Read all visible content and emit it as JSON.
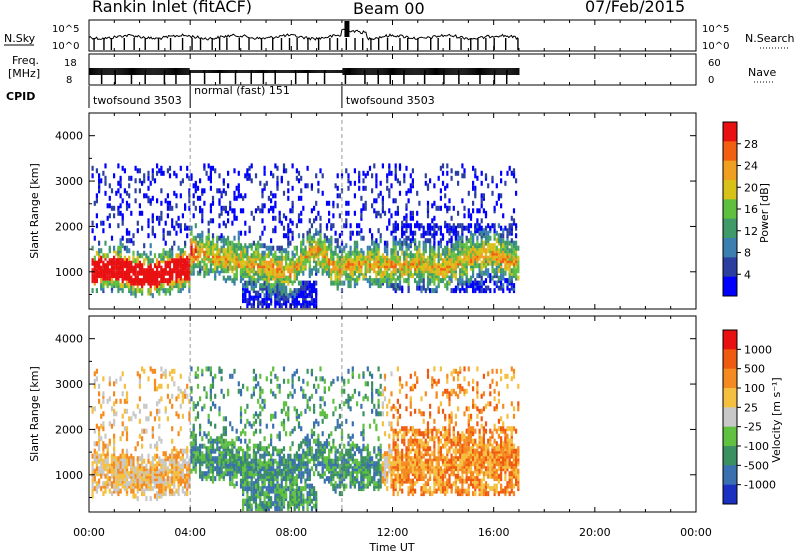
{
  "header": {
    "station": "Rankin Inlet (fitACF)",
    "beam": "Beam 00",
    "date": "07/Feb/2015"
  },
  "side_labels": {
    "nsky": "N.Sky",
    "freq_line1": "Freq.",
    "freq_line2": "[MHz]",
    "cpid": "CPID",
    "nsearch": "N.Search",
    "nave": "Nave"
  },
  "time_axis": {
    "label": "Time UT",
    "ticks": [
      "00:00",
      "04:00",
      "08:00",
      "12:00",
      "16:00",
      "20:00",
      "00:00"
    ]
  },
  "cpid_segments": [
    {
      "name": "twofsound 3503",
      "start_hour": 0,
      "end_hour": 4
    },
    {
      "name": "normal (fast) 151",
      "start_hour": 4,
      "end_hour": 10
    },
    {
      "name": "twofsound 3503",
      "start_hour": 10,
      "end_hour": 17
    }
  ],
  "colors": {
    "power": [
      "#0000ff",
      "#2b3fa0",
      "#3a7fb0",
      "#3f9a6a",
      "#5fbf3f",
      "#d8c21a",
      "#f0a020",
      "#f06010",
      "#e81010"
    ],
    "velocity": [
      "#e81010",
      "#f05a10",
      "#f58a20",
      "#f5c040",
      "#c8c8c8",
      "#60c040",
      "#3a9060",
      "#3a70b0",
      "#1a30c0"
    ]
  },
  "chart_data": [
    {
      "type": "line",
      "title": "N.Sky / N.Search",
      "xlabel": "Time UT",
      "ylabel": "N.Sky",
      "xlim_hours": [
        0,
        24
      ],
      "y_ticks_left": [
        "10^5",
        "10^0"
      ],
      "y_ticks_right": [
        "10^5",
        "10^0"
      ],
      "data_end_hour": 17
    },
    {
      "type": "bar",
      "title": "Freq. / Nave",
      "xlabel": "Time UT",
      "ylabel": "Freq. [MHz]",
      "y_ticks_left": [
        "18",
        "8"
      ],
      "y_ticks_right": [
        "60",
        "0"
      ],
      "data_end_hour": 17
    },
    {
      "type": "heatmap",
      "title": "Power",
      "xlabel": "Time UT",
      "ylabel": "Slant Range [km]",
      "y_ticks": [
        1000,
        2000,
        3000,
        4000
      ],
      "ylim_km": [
        180,
        4500
      ],
      "xlim_hours": [
        0,
        24
      ],
      "colorbar_label": "Power [dB]",
      "colorbar_ticks": [
        "28",
        "24",
        "20",
        "16",
        "12",
        "8",
        "4"
      ],
      "data_end_hour": 17
    },
    {
      "type": "heatmap",
      "title": "Velocity",
      "xlabel": "Time UT",
      "ylabel": "Slant Range [km]",
      "y_ticks": [
        1000,
        2000,
        3000,
        4000
      ],
      "ylim_km": [
        180,
        4500
      ],
      "xlim_hours": [
        0,
        24
      ],
      "colorbar_label": "Velocity [m s⁻¹]",
      "colorbar_ticks": [
        "1000",
        "500",
        "100",
        "25",
        "-25",
        "-100",
        "-500",
        "-1000"
      ],
      "data_end_hour": 17
    }
  ]
}
